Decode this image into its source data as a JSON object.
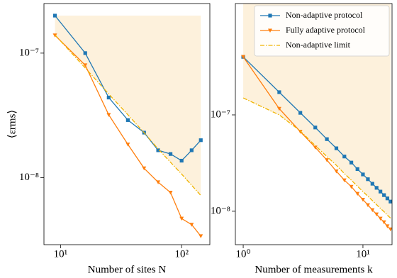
{
  "chart_data": [
    {
      "type": "line",
      "xlabel": "Number of sites N",
      "ylabel": "⟨εrms⟩",
      "xscale": "log",
      "yscale": "log",
      "xlim": [
        7.3,
        171
      ],
      "ylim": [
        2.9e-09,
        2.5e-07
      ],
      "xticks": [
        {
          "value": 10,
          "label": "10¹"
        },
        {
          "value": 100,
          "label": "10²"
        }
      ],
      "yticks": [
        {
          "value": 1e-08,
          "label": "10⁻⁸"
        },
        {
          "value": 1e-07,
          "label": "10⁻⁷"
        }
      ],
      "x": [
        9,
        16,
        25,
        36,
        49,
        64,
        81,
        100,
        121,
        144
      ],
      "shade": {
        "color": "#fdf1dc",
        "upper": 2e-07
      },
      "series": [
        {
          "color": "#1f77b4",
          "marker": "square",
          "linestyle": "solid",
          "values": [
            2e-07,
            1e-07,
            4.4e-08,
            2.9e-08,
            2.3e-08,
            1.66e-08,
            1.55e-08,
            1.37e-08,
            1.66e-08,
            2e-08
          ]
        },
        {
          "color": "#ff7f0e",
          "marker": "triangle-down",
          "linestyle": "solid",
          "values": [
            1.39e-07,
            8e-08,
            3.2e-08,
            1.85e-08,
            1.19e-08,
            9.2e-09,
            7.6e-09,
            4.7e-09,
            4.2e-09,
            3.4e-09
          ]
        },
        {
          "color": "#f0b400",
          "marker": "none",
          "linestyle": "dashdot",
          "values": [
            1.4e-07,
            7.6e-08,
            4.7e-08,
            3.2e-08,
            2.3e-08,
            1.7e-08,
            1.33e-08,
            1.07e-08,
            8.7e-09,
            7.2e-09
          ]
        }
      ]
    },
    {
      "type": "line",
      "xlabel": "Number of measurements k",
      "xscale": "log",
      "yscale": "log",
      "xlim": [
        0.86,
        17.5
      ],
      "ylim": [
        4.5e-09,
        1.43e-06
      ],
      "xticks": [
        {
          "value": 1,
          "label": "10⁰"
        },
        {
          "value": 10,
          "label": "10¹"
        }
      ],
      "yticks": [
        {
          "value": 1e-08,
          "label": "10⁻⁸"
        },
        {
          "value": 1e-07,
          "label": "10⁻⁷"
        }
      ],
      "x": [
        1,
        2,
        3,
        4,
        5,
        6,
        7,
        8,
        9,
        10,
        11,
        12,
        13,
        14,
        15,
        16,
        17
      ],
      "shade": {
        "color": "#fdf1dc"
      },
      "legend": "upper right",
      "series": [
        {
          "name": "Non-adaptive protocol",
          "color": "#1f77b4",
          "marker": "square",
          "linestyle": "solid",
          "values": [
            4e-07,
            1.72e-07,
            1.05e-07,
            7.4e-08,
            5.6e-08,
            4.5e-08,
            3.7e-08,
            3.2e-08,
            2.74e-08,
            2.41e-08,
            2.15e-08,
            1.93e-08,
            1.75e-08,
            1.6e-08,
            1.47e-08,
            1.36e-08,
            1.26e-08
          ]
        },
        {
          "name": "Fully adaptive protocol",
          "color": "#ff7f0e",
          "marker": "triangle-down",
          "linestyle": "solid",
          "values": [
            4e-07,
            1.16e-07,
            6.7e-08,
            4.6e-08,
            3.4e-08,
            2.6e-08,
            2.1e-08,
            1.8e-08,
            1.52e-08,
            1.32e-08,
            1.16e-08,
            1.03e-08,
            9.3e-09,
            8.4e-09,
            7.7e-09,
            7e-09,
            6.5e-09
          ]
        },
        {
          "name": "Non-adaptive limit",
          "color": "#f0b400",
          "marker": "none",
          "linestyle": "dashdot",
          "values": [
            1.5e-07,
            1e-07,
            6.8e-08,
            4.8e-08,
            3.7e-08,
            3e-08,
            2.46e-08,
            2.1e-08,
            1.82e-08,
            1.6e-08,
            1.43e-08,
            1.29e-08,
            1.17e-08,
            1.07e-08,
            9.9e-09,
            9.1e-09,
            8.5e-09
          ]
        }
      ]
    }
  ]
}
